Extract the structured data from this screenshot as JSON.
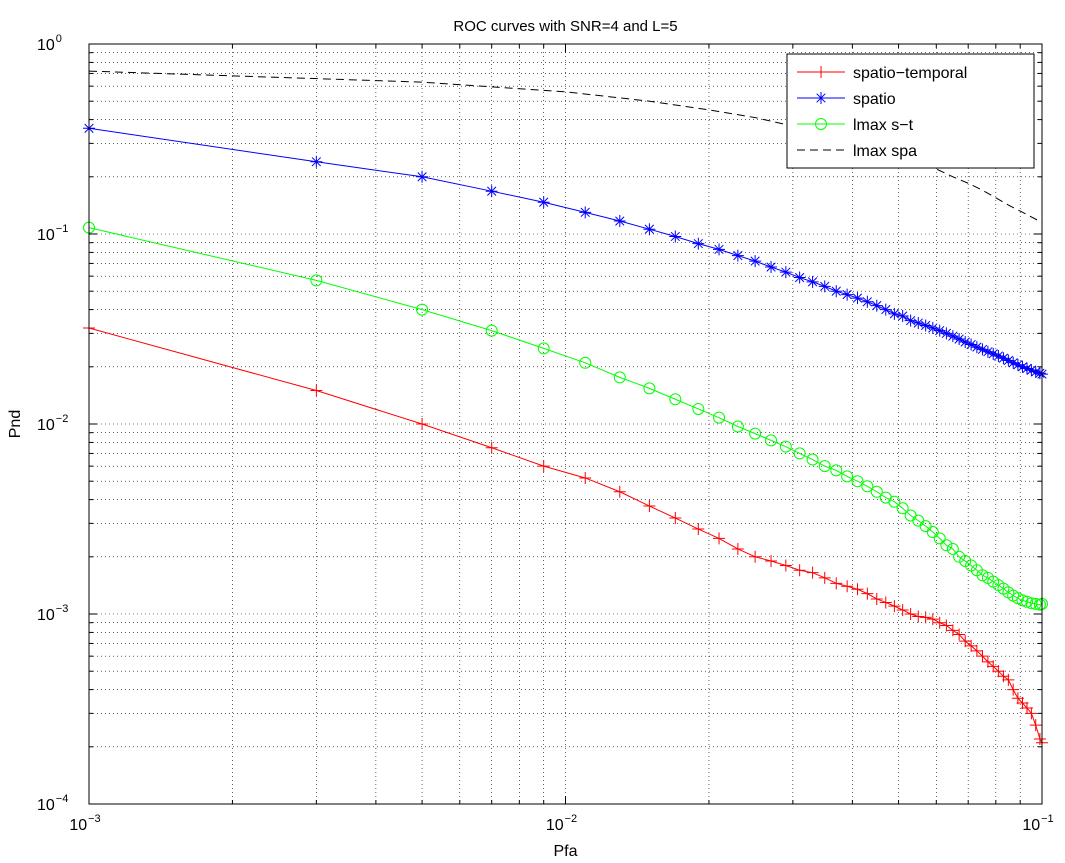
{
  "chart_data": {
    "type": "line",
    "title": "ROC curves with SNR=4 and L=5",
    "xlabel": "Pfa",
    "ylabel": "Pnd",
    "x_scale": "log",
    "y_scale": "log",
    "xlim": [
      0.001,
      0.1
    ],
    "ylim": [
      0.0001,
      1
    ],
    "grid": true,
    "legend_position": "top-right",
    "x_ticks": [
      {
        "value": 0.001,
        "base": "10",
        "exp": "−3"
      },
      {
        "value": 0.01,
        "base": "10",
        "exp": "−2"
      },
      {
        "value": 0.1,
        "base": "10",
        "exp": "−1"
      }
    ],
    "y_ticks": [
      {
        "value": 0.0001,
        "base": "10",
        "exp": "−4"
      },
      {
        "value": 0.001,
        "base": "10",
        "exp": "−3"
      },
      {
        "value": 0.01,
        "base": "10",
        "exp": "−2"
      },
      {
        "value": 0.1,
        "base": "10",
        "exp": "−1"
      },
      {
        "value": 1,
        "base": "10",
        "exp": "0"
      }
    ],
    "series": [
      {
        "name": "spatio−temporal",
        "color": "#ff0000",
        "marker": "plus",
        "dash": "solid",
        "points": [
          [
            0.001,
            0.032
          ],
          [
            0.003,
            0.015
          ],
          [
            0.005,
            0.01
          ],
          [
            0.007,
            0.0075
          ],
          [
            0.009,
            0.006
          ],
          [
            0.011,
            0.0052
          ],
          [
            0.013,
            0.0044
          ],
          [
            0.015,
            0.0037
          ],
          [
            0.017,
            0.0032
          ],
          [
            0.019,
            0.0028
          ],
          [
            0.021,
            0.0025
          ],
          [
            0.023,
            0.0022
          ],
          [
            0.025,
            0.002
          ],
          [
            0.027,
            0.0019
          ],
          [
            0.029,
            0.0018
          ],
          [
            0.031,
            0.0017
          ],
          [
            0.033,
            0.00165
          ],
          [
            0.035,
            0.00155
          ],
          [
            0.037,
            0.00145
          ],
          [
            0.039,
            0.0014
          ],
          [
            0.041,
            0.00135
          ],
          [
            0.043,
            0.00128
          ],
          [
            0.045,
            0.0012
          ],
          [
            0.047,
            0.00115
          ],
          [
            0.049,
            0.0011
          ],
          [
            0.051,
            0.00105
          ],
          [
            0.053,
            0.001
          ],
          [
            0.055,
            0.00097
          ],
          [
            0.057,
            0.00096
          ],
          [
            0.059,
            0.00094
          ],
          [
            0.061,
            0.0009
          ],
          [
            0.063,
            0.00087
          ],
          [
            0.065,
            0.00082
          ],
          [
            0.067,
            0.00078
          ],
          [
            0.069,
            0.00072
          ],
          [
            0.071,
            0.00068
          ],
          [
            0.073,
            0.00064
          ],
          [
            0.075,
            0.0006
          ],
          [
            0.077,
            0.00056
          ],
          [
            0.079,
            0.00053
          ],
          [
            0.081,
            0.0005
          ],
          [
            0.083,
            0.00047
          ],
          [
            0.085,
            0.00045
          ],
          [
            0.087,
            0.0004
          ],
          [
            0.089,
            0.00036
          ],
          [
            0.091,
            0.00034
          ],
          [
            0.093,
            0.00032
          ],
          [
            0.095,
            0.0003
          ],
          [
            0.097,
            0.00026
          ],
          [
            0.099,
            0.00022
          ],
          [
            0.1,
            0.00021
          ]
        ]
      },
      {
        "name": "spatio",
        "color": "#0000ff",
        "marker": "star",
        "dash": "solid",
        "points": [
          [
            0.001,
            0.36
          ],
          [
            0.003,
            0.24
          ],
          [
            0.005,
            0.2
          ],
          [
            0.007,
            0.168
          ],
          [
            0.009,
            0.147
          ],
          [
            0.011,
            0.13
          ],
          [
            0.013,
            0.117
          ],
          [
            0.015,
            0.106
          ],
          [
            0.017,
            0.097
          ],
          [
            0.019,
            0.089
          ],
          [
            0.021,
            0.083
          ],
          [
            0.023,
            0.077
          ],
          [
            0.025,
            0.072
          ],
          [
            0.027,
            0.067
          ],
          [
            0.029,
            0.063
          ],
          [
            0.031,
            0.059
          ],
          [
            0.033,
            0.056
          ],
          [
            0.035,
            0.053
          ],
          [
            0.037,
            0.05
          ],
          [
            0.039,
            0.048
          ],
          [
            0.041,
            0.046
          ],
          [
            0.043,
            0.044
          ],
          [
            0.045,
            0.042
          ],
          [
            0.047,
            0.04
          ],
          [
            0.049,
            0.038
          ],
          [
            0.051,
            0.037
          ],
          [
            0.053,
            0.035
          ],
          [
            0.055,
            0.034
          ],
          [
            0.057,
            0.033
          ],
          [
            0.059,
            0.032
          ],
          [
            0.061,
            0.031
          ],
          [
            0.063,
            0.03
          ],
          [
            0.065,
            0.029
          ],
          [
            0.067,
            0.028
          ],
          [
            0.069,
            0.027
          ],
          [
            0.071,
            0.0262
          ],
          [
            0.073,
            0.0254
          ],
          [
            0.075,
            0.0247
          ],
          [
            0.077,
            0.024
          ],
          [
            0.079,
            0.0234
          ],
          [
            0.081,
            0.0228
          ],
          [
            0.083,
            0.0222
          ],
          [
            0.085,
            0.0216
          ],
          [
            0.087,
            0.021
          ],
          [
            0.089,
            0.0205
          ],
          [
            0.091,
            0.02
          ],
          [
            0.093,
            0.0196
          ],
          [
            0.095,
            0.0192
          ],
          [
            0.097,
            0.0188
          ],
          [
            0.099,
            0.0185
          ],
          [
            0.1,
            0.0183
          ]
        ]
      },
      {
        "name": "lmax s−t",
        "color": "#00ff00",
        "marker": "circle",
        "dash": "solid",
        "points": [
          [
            0.001,
            0.108
          ],
          [
            0.003,
            0.057
          ],
          [
            0.005,
            0.04
          ],
          [
            0.007,
            0.031
          ],
          [
            0.009,
            0.025
          ],
          [
            0.011,
            0.021
          ],
          [
            0.013,
            0.0176
          ],
          [
            0.015,
            0.0154
          ],
          [
            0.017,
            0.0135
          ],
          [
            0.019,
            0.012
          ],
          [
            0.021,
            0.0108
          ],
          [
            0.023,
            0.0097
          ],
          [
            0.025,
            0.0089
          ],
          [
            0.027,
            0.0082
          ],
          [
            0.029,
            0.0076
          ],
          [
            0.031,
            0.007
          ],
          [
            0.033,
            0.0065
          ],
          [
            0.035,
            0.006
          ],
          [
            0.037,
            0.0057
          ],
          [
            0.039,
            0.0053
          ],
          [
            0.041,
            0.005
          ],
          [
            0.043,
            0.0047
          ],
          [
            0.045,
            0.0044
          ],
          [
            0.047,
            0.0041
          ],
          [
            0.049,
            0.0039
          ],
          [
            0.051,
            0.0036
          ],
          [
            0.053,
            0.0033
          ],
          [
            0.055,
            0.0031
          ],
          [
            0.057,
            0.0029
          ],
          [
            0.059,
            0.0027
          ],
          [
            0.061,
            0.0025
          ],
          [
            0.063,
            0.0023
          ],
          [
            0.065,
            0.0022
          ],
          [
            0.067,
            0.002
          ],
          [
            0.069,
            0.0019
          ],
          [
            0.071,
            0.0018
          ],
          [
            0.073,
            0.0017
          ],
          [
            0.075,
            0.0016
          ],
          [
            0.077,
            0.00155
          ],
          [
            0.079,
            0.00148
          ],
          [
            0.081,
            0.00142
          ],
          [
            0.083,
            0.00136
          ],
          [
            0.085,
            0.0013
          ],
          [
            0.087,
            0.00125
          ],
          [
            0.089,
            0.00121
          ],
          [
            0.091,
            0.00118
          ],
          [
            0.093,
            0.00116
          ],
          [
            0.095,
            0.00114
          ],
          [
            0.097,
            0.00113
          ],
          [
            0.099,
            0.00112
          ],
          [
            0.1,
            0.00113
          ]
        ]
      },
      {
        "name": "lmax spa",
        "color": "#000000",
        "marker": "none",
        "dash": "dashed",
        "points": [
          [
            0.001,
            0.72
          ],
          [
            0.005,
            0.63
          ],
          [
            0.01,
            0.56
          ],
          [
            0.015,
            0.5
          ],
          [
            0.02,
            0.45
          ],
          [
            0.025,
            0.41
          ],
          [
            0.03,
            0.37
          ],
          [
            0.035,
            0.34
          ],
          [
            0.04,
            0.31
          ],
          [
            0.045,
            0.285
          ],
          [
            0.05,
            0.26
          ],
          [
            0.055,
            0.24
          ],
          [
            0.06,
            0.22
          ],
          [
            0.065,
            0.2
          ],
          [
            0.07,
            0.185
          ],
          [
            0.075,
            0.17
          ],
          [
            0.08,
            0.155
          ],
          [
            0.085,
            0.142
          ],
          [
            0.09,
            0.132
          ],
          [
            0.095,
            0.123
          ],
          [
            0.1,
            0.115
          ]
        ]
      }
    ]
  }
}
